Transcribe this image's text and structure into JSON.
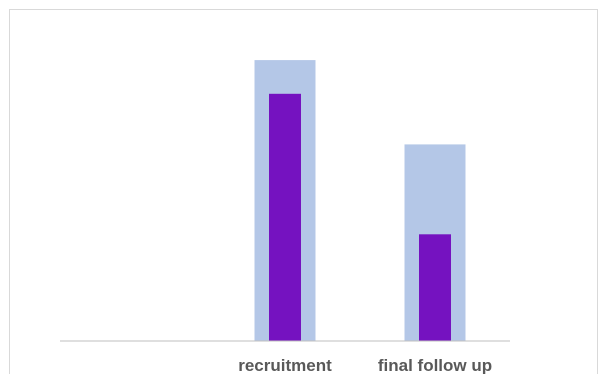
{
  "chart_data": {
    "type": "bar",
    "categories": [
      "",
      "recruitment",
      "final follow up"
    ],
    "series": [
      {
        "values": [
          0,
          100,
          70
        ],
        "color": "#b4c7e7"
      },
      {
        "values": [
          0,
          88,
          38
        ],
        "color": "#7512c0"
      }
    ],
    "ylim": [
      0,
      110
    ],
    "grid": false,
    "legend": "none",
    "colors": {
      "background": "#ffffff",
      "frame": "#d9d9d9",
      "axis": "#bfbfbf",
      "tick_text": "#595959"
    }
  }
}
